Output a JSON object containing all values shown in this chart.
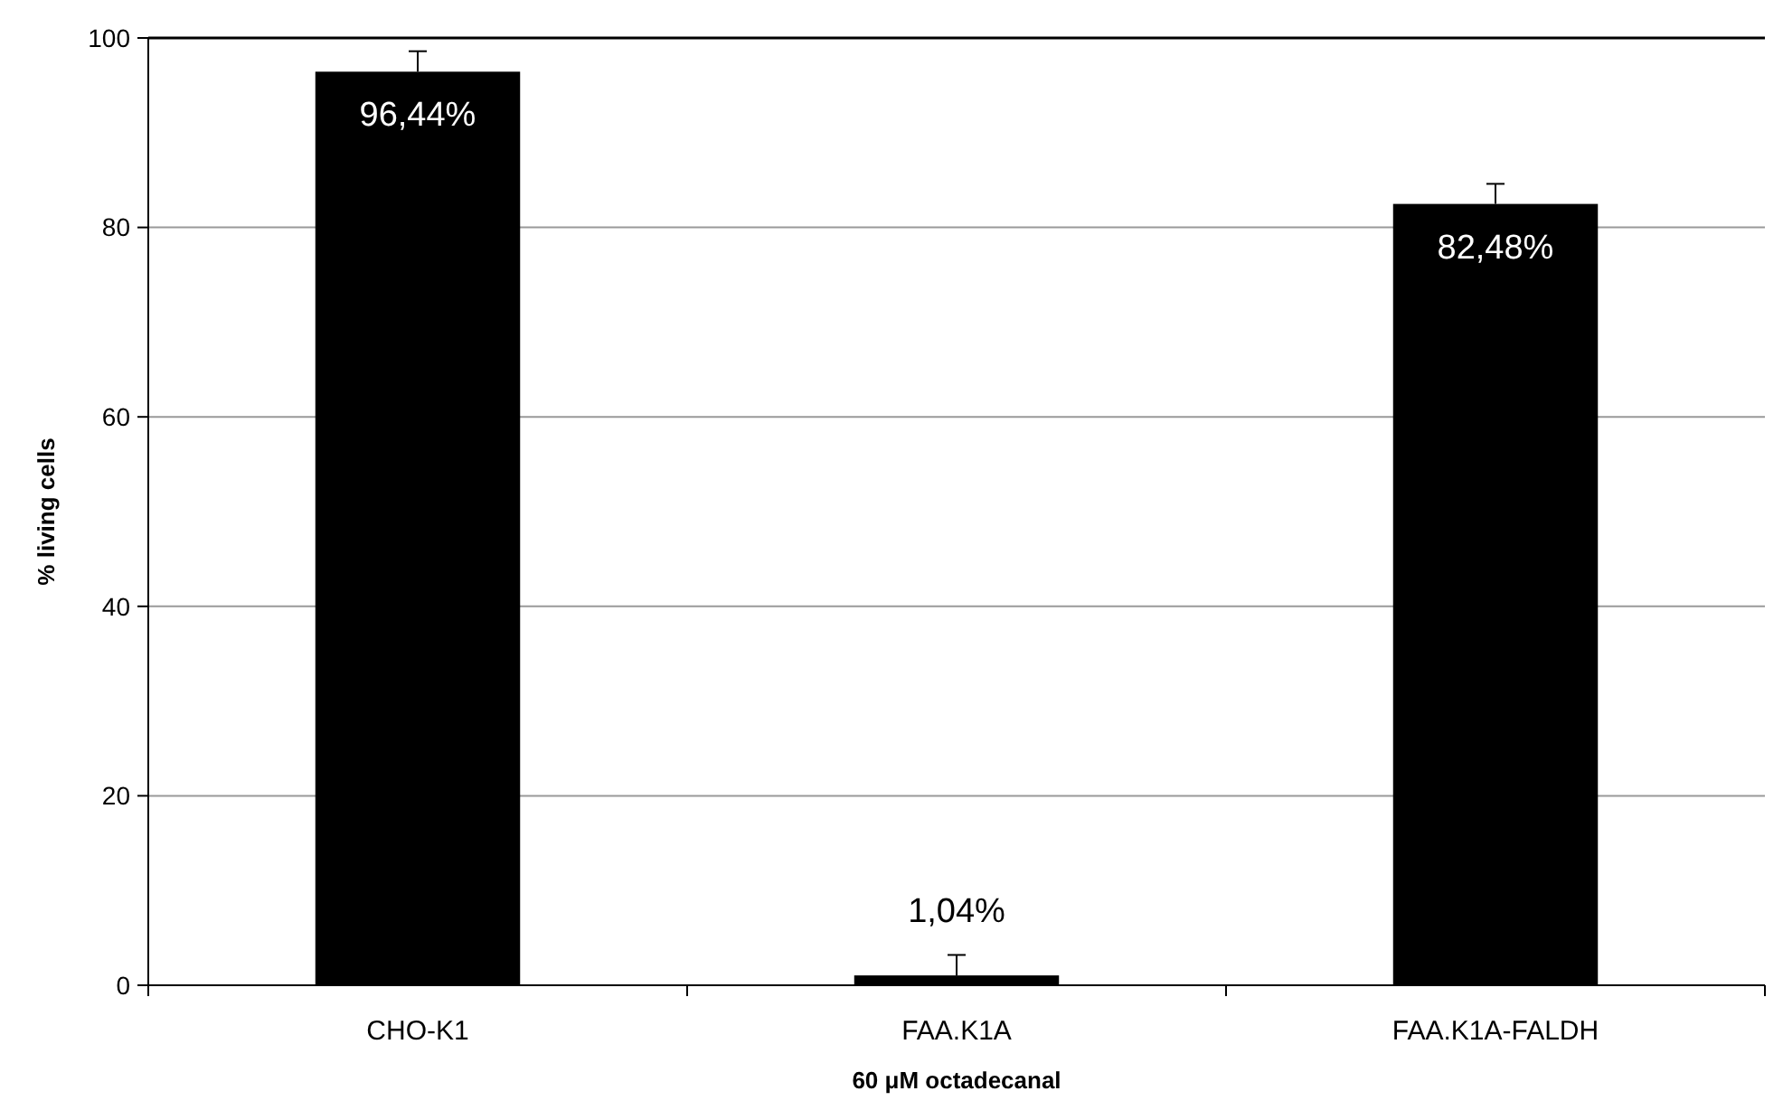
{
  "chart_data": {
    "type": "bar",
    "xlabel": "60 μM octadecanal",
    "ylabel": "% living cells",
    "categories": [
      "CHO-K1",
      "FAA.K1A",
      "FAA.K1A-FALDH"
    ],
    "values": [
      96.44,
      1.04,
      82.48
    ],
    "errors": [
      [
        96.44,
        98.6
      ],
      [
        1.04,
        3.2
      ],
      [
        82.48,
        84.6
      ]
    ],
    "value_labels": [
      "96,44%",
      "1,04%",
      "82,48%"
    ],
    "color": "#000000",
    "ylim": [
      0,
      100
    ],
    "yticks": [
      0,
      20,
      40,
      60,
      80,
      100
    ],
    "grid": "y"
  }
}
